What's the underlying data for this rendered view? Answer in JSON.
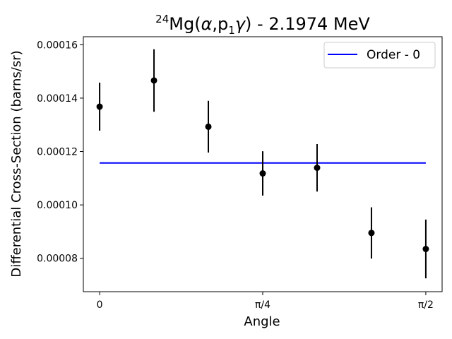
{
  "chart_data": {
    "type": "scatter",
    "title": {
      "sup": "24",
      "main": "Mg(",
      "alpha": "α",
      "mid": ",p",
      "sub": "1",
      "gamma": "γ",
      "end": ") - 2.1974 MeV"
    },
    "xlabel": "Angle",
    "ylabel": "Differential Cross-Section (barns/sr)",
    "xlim": [
      -0.0785,
      1.6493
    ],
    "ylim": [
      6.75e-05,
      0.000163
    ],
    "x_ticks": [
      {
        "value": 0,
        "label": "0"
      },
      {
        "value": 0.7854,
        "label": "π/4"
      },
      {
        "value": 1.5708,
        "label": "π/2"
      }
    ],
    "y_ticks": [
      {
        "value": 8e-05,
        "label": "0.00008"
      },
      {
        "value": 0.0001,
        "label": "0.00010"
      },
      {
        "value": 0.00012,
        "label": "0.00012"
      },
      {
        "value": 0.00014,
        "label": "0.00014"
      },
      {
        "value": 0.00016,
        "label": "0.00016"
      }
    ],
    "series": [
      {
        "kind": "errorbar",
        "color": "#000000",
        "points": [
          {
            "x": 0.0,
            "y": 0.0001368,
            "yerr": 9e-06
          },
          {
            "x": 0.2618,
            "y": 0.0001466,
            "yerr": 1.17e-05
          },
          {
            "x": 0.5236,
            "y": 0.0001293,
            "yerr": 9.7e-06
          },
          {
            "x": 0.7854,
            "y": 0.0001118,
            "yerr": 8.3e-06
          },
          {
            "x": 1.0472,
            "y": 0.0001139,
            "yerr": 8.9e-06
          },
          {
            "x": 1.309,
            "y": 8.95e-05,
            "yerr": 9.6e-06
          },
          {
            "x": 1.5708,
            "y": 8.35e-05,
            "yerr": 1.1e-05
          }
        ]
      },
      {
        "kind": "line",
        "name": "Order - 0",
        "color": "#0000ff",
        "x": [
          0.0,
          1.5708
        ],
        "y": [
          0.0001157,
          0.0001157
        ]
      }
    ],
    "legend": {
      "placement": "top-right",
      "entries": [
        "Order - 0"
      ]
    },
    "grid": false
  }
}
